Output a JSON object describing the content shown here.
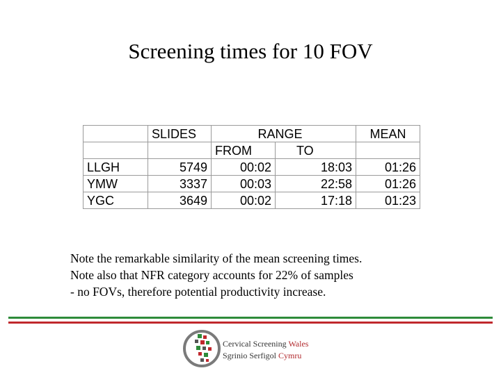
{
  "title": "Screening times for 10 FOV",
  "table": {
    "header1": [
      "",
      "SLIDES",
      "RA",
      "NGE",
      "MEAN"
    ],
    "header2": [
      "",
      "",
      "FROM",
      "TO",
      ""
    ],
    "rows": [
      {
        "site": "LLGH",
        "slides": "5749",
        "from": "00:02",
        "to": "18:03",
        "mean": "01:26"
      },
      {
        "site": "YMW",
        "slides": "3337",
        "from": "00:03",
        "to": "22:58",
        "mean": "01:26"
      },
      {
        "site": "YGC",
        "slides": "3649",
        "from": "00:02",
        "to": "17:18",
        "mean": "01:23"
      }
    ]
  },
  "notes": [
    "Note the remarkable similarity of the mean screening times.",
    "Note also that NFR category accounts for 22% of samples",
    "- no FOVs, therefore potential productivity increase."
  ],
  "logo": {
    "line1_main": "Cervical Screening",
    "line1_accent": "Wales",
    "line2_main": "Sgrinio Serfigol",
    "line2_accent": "Cymru"
  },
  "colors": {
    "rule_green": "#2e8b3a",
    "rule_red": "#c0282d",
    "logo_accent": "#b22a2e"
  }
}
